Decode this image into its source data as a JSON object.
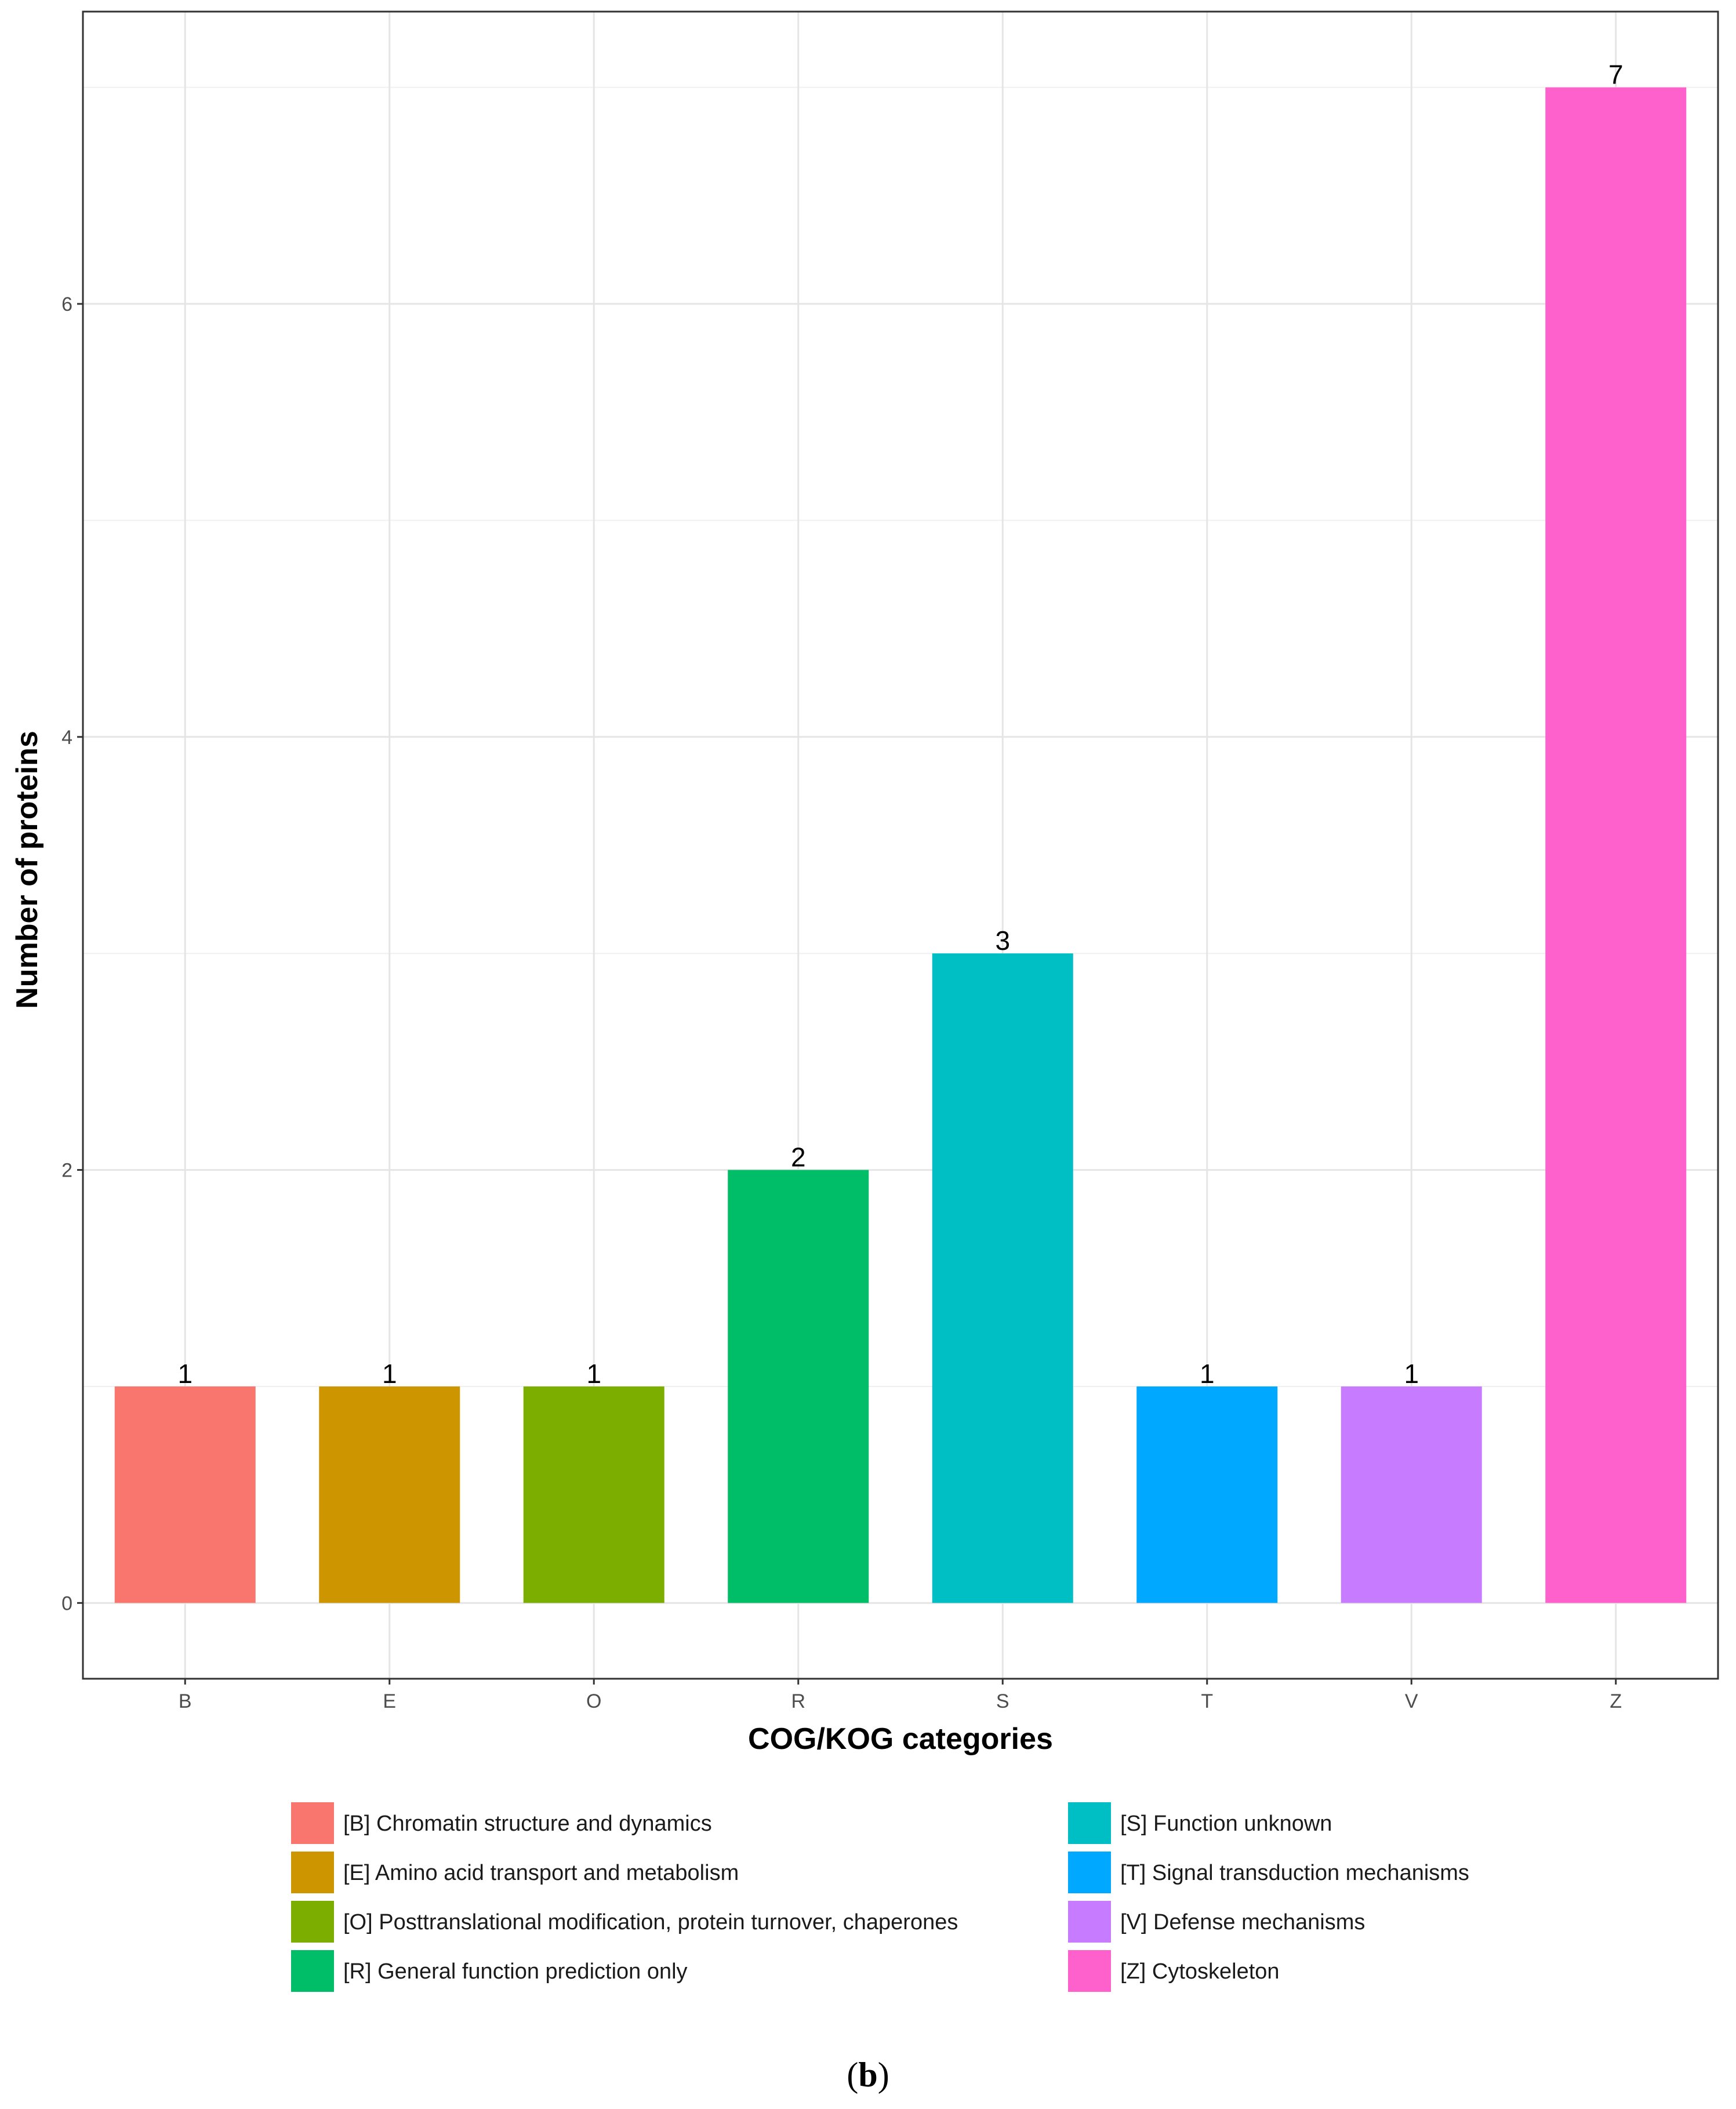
{
  "chart_data": {
    "type": "bar",
    "categories": [
      "B",
      "E",
      "O",
      "R",
      "S",
      "T",
      "V",
      "Z"
    ],
    "values": [
      1,
      1,
      1,
      2,
      3,
      1,
      1,
      7
    ],
    "data_labels": [
      "1",
      "1",
      "1",
      "2",
      "3",
      "1",
      "1",
      "7"
    ],
    "colors": [
      "#F8766D",
      "#CD9600",
      "#7CAE00",
      "#00BE67",
      "#00BFC4",
      "#00A9FF",
      "#C77CFF",
      "#FF61CC"
    ],
    "title": "",
    "xlabel": "COG/KOG categories",
    "ylabel": "Number of proteins",
    "ylim": [
      -0.35,
      7.35
    ],
    "yticks": [
      0,
      2,
      4,
      6
    ],
    "ytick_labels": [
      "0",
      "2",
      "4",
      "6"
    ],
    "grid": true,
    "legend_position": "bottom",
    "legend": [
      "[B] Chromatin structure and dynamics",
      "[E] Amino acid transport and metabolism",
      "[O] Posttranslational modification, protein turnover, chaperones",
      "[R] General function prediction only",
      "[S] Function unknown",
      "[T] Signal transduction mechanisms",
      "[V] Defense mechanisms",
      "[Z] Cytoskeleton"
    ]
  },
  "caption": {
    "open": "(",
    "letter": "b",
    "close": ")"
  }
}
